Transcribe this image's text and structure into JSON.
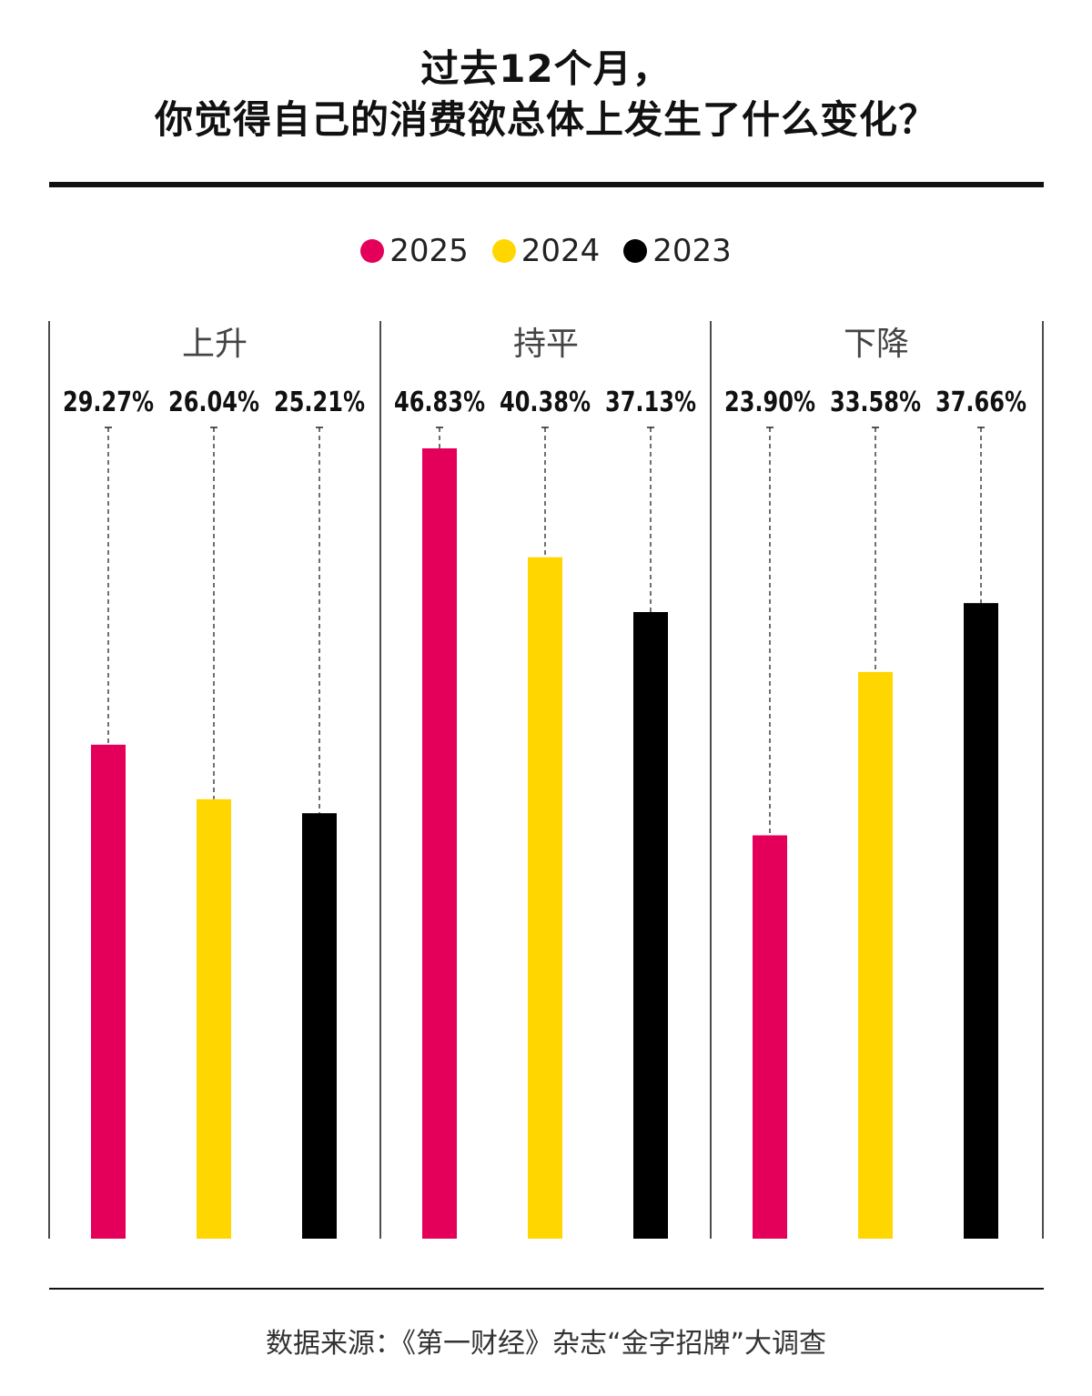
{
  "title": {
    "line1": "过去12个月，",
    "line2": "你觉得自己的消费欲总体上发生了什么变化？"
  },
  "legend": [
    {
      "label": "2025",
      "color": "#e4005a"
    },
    {
      "label": "2024",
      "color": "#ffd600"
    },
    {
      "label": "2023",
      "color": "#000000"
    }
  ],
  "source": "数据来源：《第一财经》杂志“金字招牌”大调查",
  "chart_data": {
    "type": "bar",
    "categories": [
      "上升",
      "持平",
      "下降"
    ],
    "series": [
      {
        "name": "2025",
        "color": "#e4005a",
        "values": [
          29.27,
          46.83,
          23.9
        ],
        "labels": [
          "29.27%",
          "46.83%",
          "23.90%"
        ]
      },
      {
        "name": "2024",
        "color": "#ffd600",
        "values": [
          26.04,
          40.38,
          33.58
        ],
        "labels": [
          "26.04%",
          "40.38%",
          "33.58%"
        ]
      },
      {
        "name": "2023",
        "color": "#000000",
        "values": [
          25.21,
          37.13,
          37.66
        ],
        "labels": [
          "25.21%",
          "37.13%",
          "37.66%"
        ]
      }
    ],
    "ylim": [
      0,
      50
    ],
    "grid": false,
    "legend_position": "top-center"
  }
}
